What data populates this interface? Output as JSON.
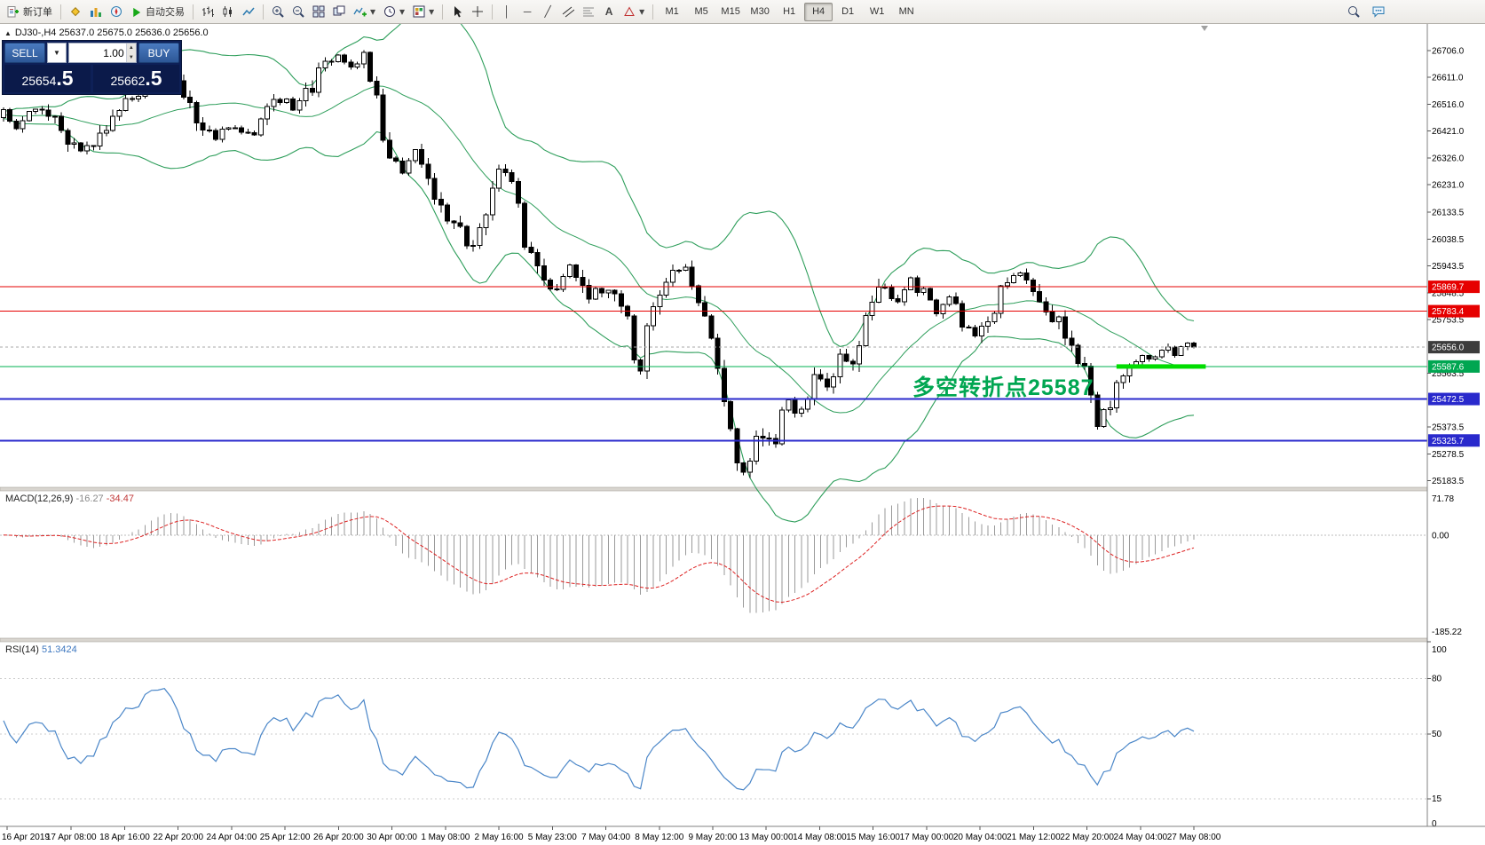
{
  "toolbar": {
    "new_order": "新订单",
    "auto_trading": "自动交易",
    "timeframes": [
      "M1",
      "M5",
      "M15",
      "M30",
      "H1",
      "H4",
      "D1",
      "W1",
      "MN"
    ],
    "active_timeframe": "H4"
  },
  "one_click": {
    "sell_label": "SELL",
    "buy_label": "BUY",
    "volume": "1.00",
    "sell_price_main": "25654",
    "sell_price_big": ".5",
    "buy_price_main": "25662",
    "buy_price_big": ".5"
  },
  "symbol_info": {
    "text": "DJ30-,H4 25637.0 25675.0 25636.0 25656.0"
  },
  "annotation": {
    "text": "多空转折点25587",
    "color": "#00a651"
  },
  "macd_header": {
    "name": "MACD(12,26,9)",
    "value1": "-16.27",
    "value2": "-34.47"
  },
  "rsi_header": {
    "name": "RSI(14)",
    "value": "51.3424"
  },
  "icons": {
    "chevron_down": "▼",
    "spin_up": "▲",
    "spin_down": "▼",
    "panel_toggle": "▲",
    "vline": "│",
    "hline": "─",
    "trendline": "╱",
    "text_tool": "A",
    "dropdown_caret": "▾"
  },
  "colors": {
    "button_blue": "#3a6db8",
    "panel_navy": "#0e2057",
    "level_red": "#e60000",
    "level_green": "#00b050",
    "level_blue": "#2929cc",
    "highlight_green": "#00dd00",
    "annotation_green": "#00a651",
    "bollinger_green": "#2e9e5b",
    "macd_signal_red": "#dd2222",
    "rsi_blue": "#4a86c8"
  },
  "chart_data": {
    "type": "candlestick",
    "symbol": "DJ30-",
    "timeframe": "H4",
    "ohlc": {
      "open": 25637.0,
      "high": 25675.0,
      "low": 25636.0,
      "close": 25656.0
    },
    "bars": 186,
    "ylim": [
      25160,
      26800
    ],
    "price_ticks": [
      "26706.0",
      "26611.0",
      "26516.0",
      "26421.0",
      "26326.0",
      "26231.0",
      "26133.5",
      "26038.5",
      "25943.5",
      "25848.5",
      "25753.5",
      "25563.5",
      "25373.5",
      "25278.5",
      "25183.5"
    ],
    "levels": [
      {
        "price": 25869.7,
        "label": "25869.7",
        "color": "#e60000",
        "tag": "#e60000",
        "style": "solid",
        "width": 1
      },
      {
        "price": 25783.4,
        "label": "25783.4",
        "color": "#e60000",
        "tag": "#e60000",
        "style": "solid",
        "width": 1
      },
      {
        "price": 25656.0,
        "label": "25656.0",
        "color": "#aaaaaa",
        "tag": "#3c3c3c",
        "style": "dash",
        "width": 1
      },
      {
        "price": 25587.6,
        "label": "25587.6",
        "color": "#00b050",
        "tag": "#00a651",
        "style": "solid",
        "width": 1
      },
      {
        "price": 25472.5,
        "label": "25472.5",
        "color": "#2929cc",
        "tag": "#2929cc",
        "style": "solid",
        "width": 2
      },
      {
        "price": 25325.7,
        "label": "25325.7",
        "color": "#2929cc",
        "tag": "#2929cc",
        "style": "solid",
        "width": 2
      }
    ],
    "highlight": {
      "price": 25587.6,
      "t0": 0.935,
      "t1": 1.01,
      "color": "#00dd00",
      "thickness": 5
    },
    "time_ticks": [
      "16 Apr 2019",
      "17 Apr 08:00",
      "18 Apr 16:00",
      "22 Apr 20:00",
      "24 Apr 04:00",
      "25 Apr 12:00",
      "26 Apr 20:00",
      "30 Apr 00:00",
      "1 May 08:00",
      "2 May 16:00",
      "5 May 23:00",
      "7 May 04:00",
      "8 May 12:00",
      "9 May 20:00",
      "13 May 00:00",
      "14 May 08:00",
      "15 May 16:00",
      "17 May 00:00",
      "20 May 04:00",
      "21 May 12:00",
      "22 May 20:00",
      "24 May 04:00",
      "27 May 08:00"
    ],
    "price_path_units": [
      "time_fraction",
      "price"
    ],
    "price_path": [
      [
        0.0,
        26480
      ],
      [
        0.012,
        26430
      ],
      [
        0.025,
        26510
      ],
      [
        0.04,
        26470
      ],
      [
        0.055,
        26400
      ],
      [
        0.068,
        26345
      ],
      [
        0.08,
        26430
      ],
      [
        0.095,
        26480
      ],
      [
        0.11,
        26540
      ],
      [
        0.125,
        26620
      ],
      [
        0.14,
        26660
      ],
      [
        0.152,
        26560
      ],
      [
        0.163,
        26470
      ],
      [
        0.175,
        26390
      ],
      [
        0.19,
        26440
      ],
      [
        0.205,
        26400
      ],
      [
        0.22,
        26470
      ],
      [
        0.232,
        26540
      ],
      [
        0.245,
        26500
      ],
      [
        0.258,
        26560
      ],
      [
        0.27,
        26650
      ],
      [
        0.283,
        26690
      ],
      [
        0.293,
        26630
      ],
      [
        0.303,
        26680
      ],
      [
        0.313,
        26560
      ],
      [
        0.323,
        26300
      ],
      [
        0.335,
        26280
      ],
      [
        0.345,
        26360
      ],
      [
        0.357,
        26240
      ],
      [
        0.37,
        26120
      ],
      [
        0.383,
        26060
      ],
      [
        0.395,
        25990
      ],
      [
        0.405,
        26120
      ],
      [
        0.415,
        26290
      ],
      [
        0.428,
        26230
      ],
      [
        0.44,
        26000
      ],
      [
        0.45,
        25900
      ],
      [
        0.463,
        25850
      ],
      [
        0.475,
        25960
      ],
      [
        0.488,
        25840
      ],
      [
        0.5,
        25870
      ],
      [
        0.513,
        25820
      ],
      [
        0.524,
        25760
      ],
      [
        0.533,
        25540
      ],
      [
        0.543,
        25800
      ],
      [
        0.556,
        25880
      ],
      [
        0.568,
        25940
      ],
      [
        0.58,
        25860
      ],
      [
        0.592,
        25720
      ],
      [
        0.602,
        25560
      ],
      [
        0.613,
        25280
      ],
      [
        0.623,
        25210
      ],
      [
        0.634,
        25350
      ],
      [
        0.645,
        25290
      ],
      [
        0.657,
        25460
      ],
      [
        0.668,
        25420
      ],
      [
        0.68,
        25540
      ],
      [
        0.692,
        25500
      ],
      [
        0.703,
        25620
      ],
      [
        0.714,
        25580
      ],
      [
        0.726,
        25780
      ],
      [
        0.738,
        25860
      ],
      [
        0.75,
        25820
      ],
      [
        0.762,
        25890
      ],
      [
        0.773,
        25850
      ],
      [
        0.784,
        25780
      ],
      [
        0.795,
        25840
      ],
      [
        0.806,
        25750
      ],
      [
        0.817,
        25690
      ],
      [
        0.829,
        25780
      ],
      [
        0.841,
        25870
      ],
      [
        0.852,
        25920
      ],
      [
        0.863,
        25860
      ],
      [
        0.875,
        25800
      ],
      [
        0.887,
        25730
      ],
      [
        0.898,
        25660
      ],
      [
        0.908,
        25560
      ],
      [
        0.918,
        25390
      ],
      [
        0.927,
        25430
      ],
      [
        0.937,
        25580
      ],
      [
        0.947,
        25560
      ],
      [
        0.956,
        25630
      ],
      [
        0.965,
        25600
      ],
      [
        0.974,
        25660
      ],
      [
        0.983,
        25620
      ],
      [
        0.991,
        25660
      ],
      [
        1.0,
        25650
      ]
    ],
    "bollinger": {
      "period": 20,
      "deviation": 2
    },
    "macd": {
      "fast": 12,
      "slow": 26,
      "signal": 9,
      "axis": [
        "71.78",
        "0.00",
        "-185.22"
      ]
    },
    "rsi": {
      "period": 14,
      "value": 51.3424,
      "axis": [
        "100",
        "80",
        "50",
        "15",
        "0"
      ],
      "levels": [
        80,
        50,
        15
      ]
    }
  }
}
